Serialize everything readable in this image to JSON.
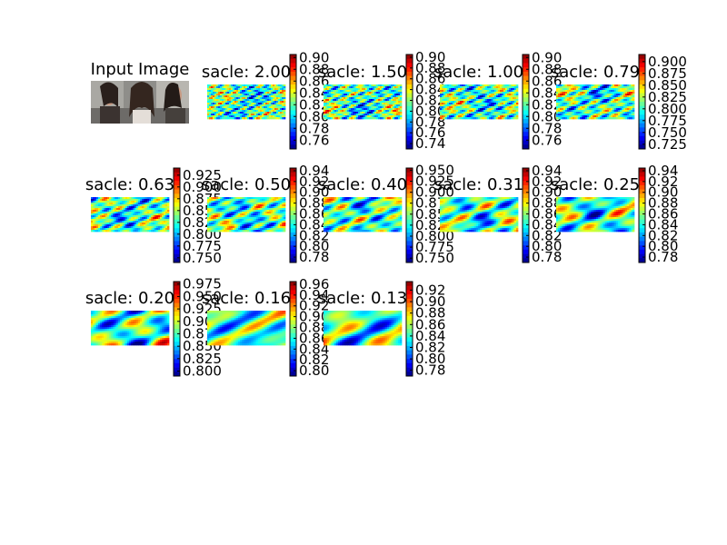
{
  "figure": {
    "input_title": "Input Image"
  },
  "chart_data": {
    "type": "heatmap",
    "colormap": "jet",
    "panels": [
      {
        "title": "sacle: 2.00",
        "vmin": 0.745,
        "vmax": 0.905,
        "ticks": [
          "0.90",
          "0.88",
          "0.86",
          "0.84",
          "0.82",
          "0.80",
          "0.78",
          "0.76"
        ],
        "detail": 1.0,
        "seed": 3
      },
      {
        "title": "sacle: 1.50",
        "vmin": 0.73,
        "vmax": 0.905,
        "ticks": [
          "0.90",
          "0.88",
          "0.86",
          "0.84",
          "0.82",
          "0.80",
          "0.78",
          "0.76",
          "0.74"
        ],
        "detail": 0.88,
        "seed": 7
      },
      {
        "title": "sacle: 1.00",
        "vmin": 0.745,
        "vmax": 0.905,
        "ticks": [
          "0.90",
          "0.88",
          "0.86",
          "0.84",
          "0.82",
          "0.80",
          "0.78",
          "0.76"
        ],
        "detail": 0.75,
        "seed": 11
      },
      {
        "title": "sacle: 0.79",
        "vmin": 0.715,
        "vmax": 0.915,
        "ticks": [
          "0.900",
          "0.875",
          "0.850",
          "0.825",
          "0.800",
          "0.775",
          "0.750",
          "0.725"
        ],
        "detail": 0.66,
        "seed": 13
      },
      {
        "title": "sacle: 0.63",
        "vmin": 0.74,
        "vmax": 0.94,
        "ticks": [
          "0.925",
          "0.900",
          "0.875",
          "0.850",
          "0.825",
          "0.800",
          "0.775",
          "0.750"
        ],
        "detail": 0.56,
        "seed": 17
      },
      {
        "title": "sacle: 0.50",
        "vmin": 0.77,
        "vmax": 0.945,
        "ticks": [
          "0.94",
          "0.92",
          "0.90",
          "0.88",
          "0.86",
          "0.84",
          "0.82",
          "0.80",
          "0.78"
        ],
        "detail": 0.48,
        "seed": 19
      },
      {
        "title": "sacle: 0.40",
        "vmin": 0.74,
        "vmax": 0.955,
        "ticks": [
          "0.950",
          "0.925",
          "0.900",
          "0.875",
          "0.850",
          "0.825",
          "0.800",
          "0.775",
          "0.750"
        ],
        "detail": 0.4,
        "seed": 23
      },
      {
        "title": "sacle: 0.31",
        "vmin": 0.77,
        "vmax": 0.945,
        "ticks": [
          "0.94",
          "0.92",
          "0.90",
          "0.88",
          "0.86",
          "0.84",
          "0.82",
          "0.80",
          "0.78"
        ],
        "detail": 0.32,
        "seed": 29
      },
      {
        "title": "sacle: 0.25",
        "vmin": 0.77,
        "vmax": 0.945,
        "ticks": [
          "0.94",
          "0.92",
          "0.90",
          "0.88",
          "0.86",
          "0.84",
          "0.82",
          "0.80",
          "0.78"
        ],
        "detail": 0.26,
        "seed": 31
      },
      {
        "title": "sacle: 0.20",
        "vmin": 0.79,
        "vmax": 0.98,
        "ticks": [
          "0.975",
          "0.950",
          "0.925",
          "0.900",
          "0.875",
          "0.850",
          "0.825",
          "0.800"
        ],
        "detail": 0.2,
        "seed": 37
      },
      {
        "title": "sacle: 0.16",
        "vmin": 0.79,
        "vmax": 0.965,
        "ticks": [
          "0.96",
          "0.94",
          "0.92",
          "0.90",
          "0.88",
          "0.86",
          "0.84",
          "0.82",
          "0.80"
        ],
        "detail": 0.16,
        "seed": 41
      },
      {
        "title": "sacle: 0.13",
        "vmin": 0.77,
        "vmax": 0.935,
        "ticks": [
          "0.92",
          "0.90",
          "0.88",
          "0.86",
          "0.84",
          "0.82",
          "0.80",
          "0.78"
        ],
        "detail": 0.13,
        "seed": 43
      }
    ]
  }
}
